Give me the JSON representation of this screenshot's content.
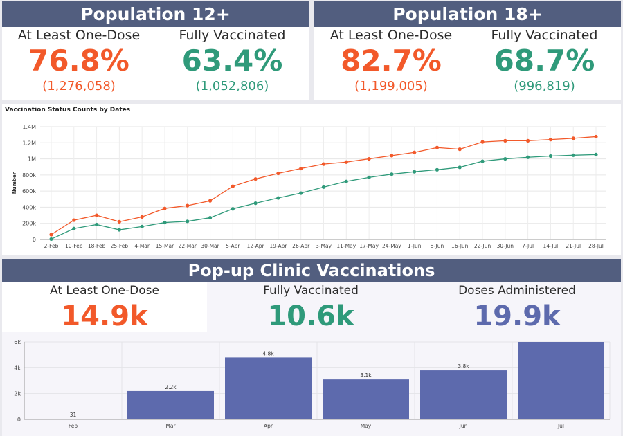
{
  "pop12": {
    "title": "Population 12+",
    "one_dose_label": "At Least One-Dose",
    "one_dose_pct": "76.8%",
    "one_dose_count": "(1,276,058)",
    "full_label": "Fully Vaccinated",
    "full_pct": "63.4%",
    "full_count": "(1,052,806)"
  },
  "pop18": {
    "title": "Population 18+",
    "one_dose_label": "At Least One-Dose",
    "one_dose_pct": "82.7%",
    "one_dose_count": "(1,199,005)",
    "full_label": "Fully Vaccinated",
    "full_pct": "68.7%",
    "full_count": "(996,819)"
  },
  "clinic": {
    "title": "Pop-up Clinic Vaccinations",
    "one_dose_label": "At Least One-Dose",
    "one_dose_value": "14.9k",
    "full_label": "Fully Vaccinated",
    "full_value": "10.6k",
    "doses_label": "Doses Administered",
    "doses_value": "19.9k"
  },
  "colors": {
    "orange": "#f2592a",
    "green": "#2f9a7a",
    "blue": "#5d6aad",
    "banner": "#525e7f"
  },
  "chart_data": [
    {
      "type": "line",
      "title": "Vaccination Status Counts by Dates",
      "xlabel": "",
      "ylabel": "Number",
      "ylim": [
        0,
        1400000
      ],
      "y_ticks": [
        0,
        200000,
        400000,
        600000,
        800000,
        1000000,
        1200000,
        1400000
      ],
      "y_tick_labels": [
        "0",
        "200k",
        "400k",
        "600k",
        "800k",
        "1M",
        "1.2M",
        "1.4M"
      ],
      "grid": true,
      "x": [
        "2-Feb",
        "10-Feb",
        "18-Feb",
        "25-Feb",
        "4-Mar",
        "15-Mar",
        "22-Mar",
        "30-Mar",
        "5-Apr",
        "12-Apr",
        "19-Apr",
        "26-Apr",
        "3-May",
        "11-May",
        "17-May",
        "24-May",
        "1-Jun",
        "8-Jun",
        "16-Jun",
        "22-Jun",
        "30-Jun",
        "7-Jul",
        "14-Jul",
        "21-Jul",
        "28-Jul"
      ],
      "series": [
        {
          "color": "#f2592a",
          "values": [
            60000,
            240000,
            300000,
            220000,
            280000,
            385000,
            420000,
            480000,
            660000,
            750000,
            820000,
            880000,
            935000,
            960000,
            1000000,
            1040000,
            1080000,
            1140000,
            1120000,
            1210000,
            1225000,
            1225000,
            1240000,
            1255000,
            1276000
          ]
        },
        {
          "color": "#2f9a7a",
          "values": [
            5000,
            135000,
            185000,
            120000,
            160000,
            210000,
            225000,
            270000,
            380000,
            450000,
            515000,
            575000,
            650000,
            720000,
            770000,
            810000,
            840000,
            865000,
            895000,
            970000,
            1000000,
            1020000,
            1035000,
            1045000,
            1053000
          ]
        }
      ]
    },
    {
      "type": "bar",
      "title": "",
      "xlabel": "",
      "ylabel": "",
      "ylim": [
        0,
        6000
      ],
      "y_ticks": [
        0,
        2000,
        4000,
        6000
      ],
      "y_tick_labels": [
        "0",
        "2k",
        "4k",
        "6k"
      ],
      "grid": true,
      "color": "#5d6aad",
      "categories": [
        "Feb",
        "Mar",
        "Apr",
        "May",
        "Jun",
        "Jul"
      ],
      "values": [
        31,
        2200,
        4800,
        3100,
        3800,
        6000
      ],
      "data_labels": [
        "31",
        "2.2k",
        "4.8k",
        "3.1k",
        "3.8k",
        ""
      ]
    }
  ]
}
